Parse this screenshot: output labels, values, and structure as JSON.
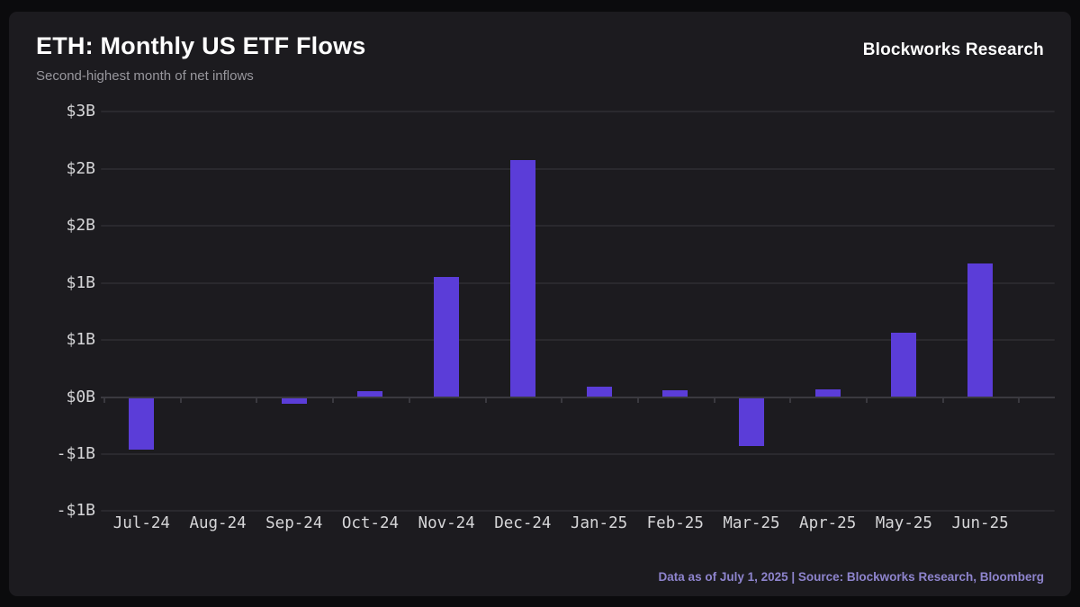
{
  "header": {
    "title": "ETH: Monthly US ETF Flows",
    "subtitle": "Second-highest month of net inflows",
    "brand": "Blockworks Research"
  },
  "footer": {
    "text": "Data as of July 1, 2025 | Source: Blockworks Research, Bloomberg"
  },
  "colors": {
    "background": "#0b0b0d",
    "panel": "#1c1b1f",
    "bar": "#5b3dd8",
    "gridline": "#2a292e",
    "axis_line": "#3a393f",
    "tick_label": "#d6d6d8",
    "subtitle_text": "#98979d",
    "footer_text": "#8e84cd",
    "title_text": "#ffffff"
  },
  "chart_data": {
    "type": "bar",
    "title": "ETH: Monthly US ETF Flows",
    "subtitle": "Second-highest month of net inflows",
    "unit": "USD billions",
    "categories": [
      "Jul-24",
      "Aug-24",
      "Sep-24",
      "Oct-24",
      "Nov-24",
      "Dec-24",
      "Jan-25",
      "Feb-25",
      "Mar-25",
      "Apr-25",
      "May-25",
      "Jun-25"
    ],
    "values": [
      -0.45,
      0,
      -0.05,
      0.05,
      1.05,
      2.08,
      0.09,
      0.06,
      -0.42,
      0.07,
      0.56,
      1.17
    ],
    "bar_color": "#5b3dd8",
    "grid": true,
    "legend": false,
    "ylim": [
      -1.0,
      2.5
    ],
    "ytick_interval": 0.5,
    "yticks": [
      {
        "value": 2.5,
        "label": "$3B"
      },
      {
        "value": 2.0,
        "label": "$2B"
      },
      {
        "value": 1.5,
        "label": "$2B"
      },
      {
        "value": 1.0,
        "label": "$1B"
      },
      {
        "value": 0.5,
        "label": "$1B"
      },
      {
        "value": 0.0,
        "label": "$0B"
      },
      {
        "value": -0.5,
        "label": "-$1B"
      },
      {
        "value": -1.0,
        "label": "-$1B"
      }
    ]
  }
}
